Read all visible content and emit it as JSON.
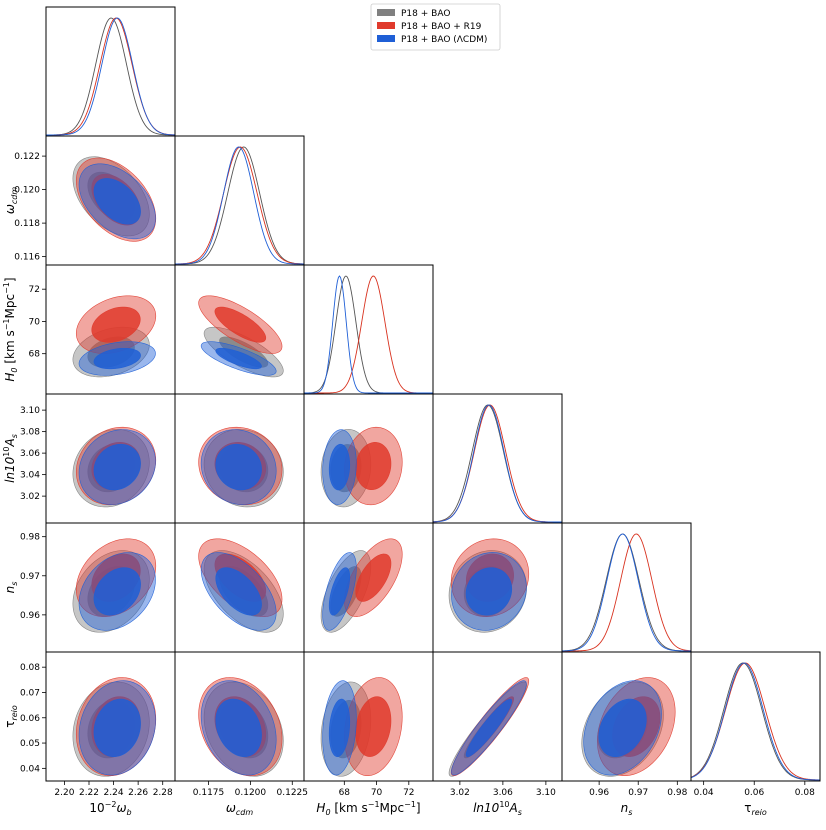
{
  "chart_data": {
    "type": "triangle-corner",
    "legend": {
      "placement": "top-center",
      "entries": [
        {
          "name": "P18 + BAO",
          "color": "#808080"
        },
        {
          "name": "P18 + BAO + R19",
          "color": "#e03a2c"
        },
        {
          "name": "P18 + BAO (ΛCDM)",
          "color": "#1f5fd6"
        }
      ]
    },
    "params": [
      {
        "key": "wb",
        "label": "10⁻²ω_b",
        "range": [
          2.185,
          2.29
        ],
        "ticks": [
          "2.20",
          "2.22",
          "2.24",
          "2.26",
          "2.28"
        ],
        "tickvals": [
          2.2,
          2.22,
          2.24,
          2.26,
          2.28
        ]
      },
      {
        "key": "wcdm",
        "label": "ω_cdm",
        "range": [
          0.1155,
          0.1232
        ],
        "ticks": [
          "0.116",
          "0.118",
          "0.120",
          "0.122"
        ],
        "tickvals": [
          0.116,
          0.118,
          0.12,
          0.122
        ],
        "xticks": [
          "0.1175",
          "0.1200",
          "0.1225"
        ],
        "xtickvals": [
          0.1175,
          0.12,
          0.1225
        ]
      },
      {
        "key": "H0",
        "label": "H0 [km s⁻¹Mpc⁻¹]",
        "range": [
          65.5,
          73.5
        ],
        "ticks": [
          "68",
          "70",
          "72"
        ],
        "tickvals": [
          68,
          70,
          72
        ]
      },
      {
        "key": "As",
        "label": "ln10¹⁰A_s",
        "range": [
          2.995,
          3.115
        ],
        "ticks": [
          "3.02",
          "3.04",
          "3.06",
          "3.08",
          "3.10"
        ],
        "tickvals": [
          3.02,
          3.04,
          3.06,
          3.08,
          3.1
        ],
        "xticks": [
          "3.02",
          "3.06",
          "3.10"
        ],
        "xtickvals": [
          3.02,
          3.06,
          3.1
        ]
      },
      {
        "key": "ns",
        "label": "n_s",
        "range": [
          0.9505,
          0.9835
        ],
        "ticks": [
          "0.96",
          "0.97",
          "0.98"
        ],
        "tickvals": [
          0.96,
          0.97,
          0.98
        ]
      },
      {
        "key": "tau",
        "label": "τ_reio",
        "range": [
          0.035,
          0.086
        ],
        "ticks": [
          "0.04",
          "0.05",
          "0.06",
          "0.07",
          "0.08"
        ],
        "tickvals": [
          0.04,
          0.05,
          0.06,
          0.07,
          0.08
        ],
        "xticks": [
          "0.04",
          "0.06",
          "0.08"
        ],
        "xtickvals": [
          0.04,
          0.06,
          0.08
        ]
      }
    ],
    "series": [
      {
        "name": "P18 + BAO",
        "color": "#808080",
        "linecolor": "#555555",
        "mean": {
          "wb": 2.238,
          "wcdm": 0.1196,
          "H0": 68.1,
          "As": 3.046,
          "ns": 0.966,
          "tau": 0.0555
        },
        "sigma": {
          "wb": 0.0125,
          "wcdm": 0.00095,
          "H0": 0.62,
          "As": 0.0145,
          "ns": 0.0042,
          "tau": 0.0075
        }
      },
      {
        "name": "P18 + BAO + R19",
        "color": "#e03a2c",
        "linecolor": "#d8321f",
        "mean": {
          "wb": 2.242,
          "wcdm": 0.1194,
          "H0": 69.8,
          "As": 3.048,
          "ns": 0.9695,
          "tau": 0.0565
        },
        "sigma": {
          "wb": 0.013,
          "wcdm": 0.001,
          "H0": 0.72,
          "As": 0.0145,
          "ns": 0.004,
          "tau": 0.0078
        }
      },
      {
        "name": "P18 + BAO (ΛCDM)",
        "color": "#1f5fd6",
        "linecolor": "#1f5fd6",
        "mean": {
          "wb": 2.243,
          "wcdm": 0.1193,
          "H0": 67.7,
          "As": 3.047,
          "ns": 0.966,
          "tau": 0.056
        },
        "sigma": {
          "wb": 0.0125,
          "wcdm": 0.0009,
          "H0": 0.42,
          "As": 0.014,
          "ns": 0.004,
          "tau": 0.0075
        }
      }
    ],
    "correlations": {
      "wcdm|wb": -0.45,
      "H0|wb": 0.3,
      "H0|wcdm": -0.75,
      "As|wb": 0.15,
      "As|wcdm": -0.1,
      "As|H0": 0.1,
      "ns|wb": 0.3,
      "ns|wcdm": -0.55,
      "ns|H0": 0.6,
      "ns|As": 0.1,
      "tau|wb": 0.15,
      "tau|wcdm": -0.25,
      "tau|H0": 0.2,
      "tau|As": 0.93,
      "tau|ns": 0.3
    }
  }
}
